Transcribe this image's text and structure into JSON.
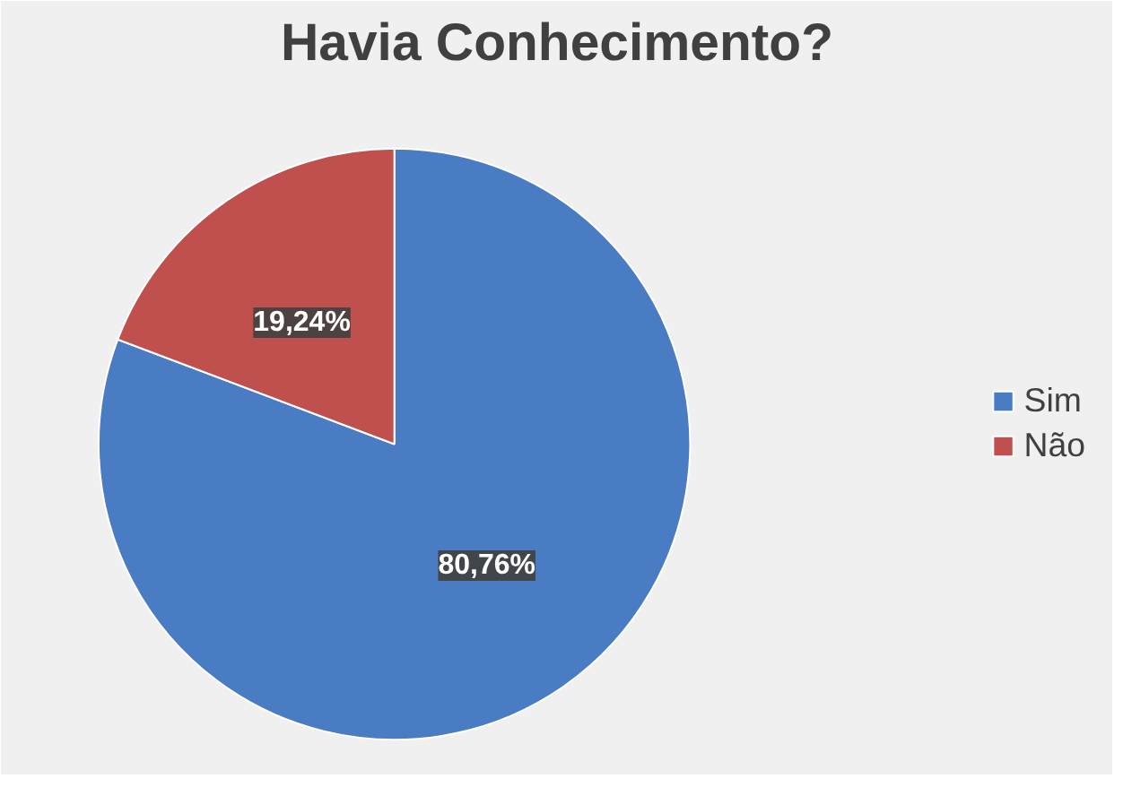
{
  "chart_data": {
    "type": "pie",
    "title": "Havia Conhecimento?",
    "categories": [
      "Sim",
      "Não"
    ],
    "values": [
      80.76,
      19.24
    ],
    "colors": [
      "#4a7cc4",
      "#c0504d"
    ],
    "value_labels": [
      "80,76%",
      "19,24%"
    ],
    "legend": "right"
  }
}
